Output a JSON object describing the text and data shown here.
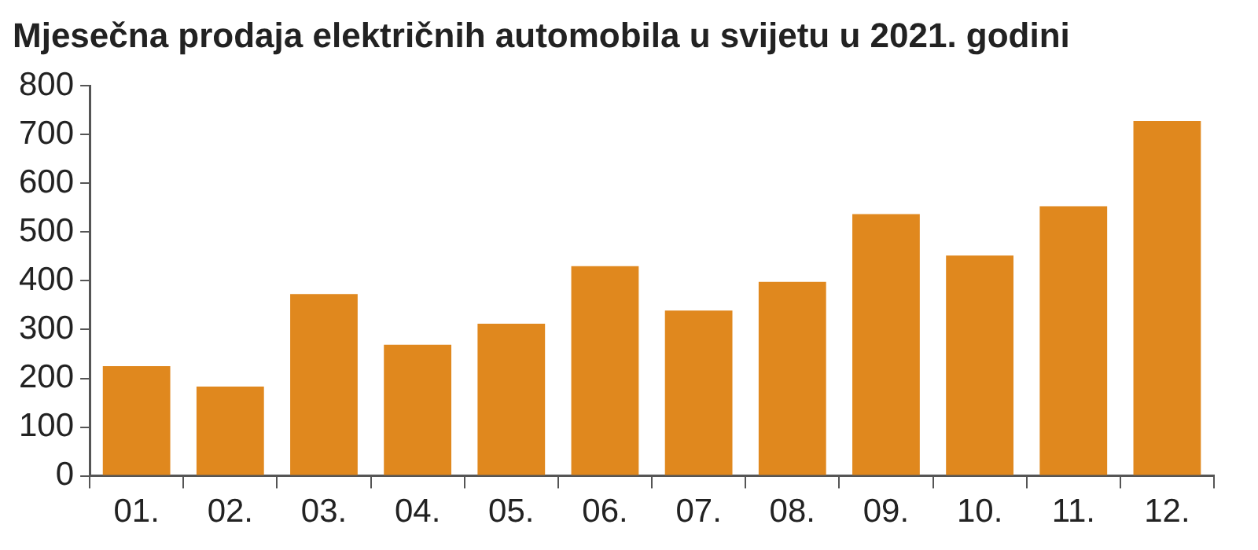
{
  "chart_data": {
    "type": "bar",
    "title": "Mjesečna prodaja električnih automobila u svijetu u 2021. godini",
    "categories": [
      "01.",
      "02.",
      "03.",
      "04.",
      "05.",
      "06.",
      "07.",
      "08.",
      "09.",
      "10.",
      "11.",
      "12."
    ],
    "values": [
      225,
      183,
      373,
      269,
      312,
      430,
      339,
      398,
      537,
      452,
      553,
      728
    ],
    "color": "#e0881e",
    "ylim": [
      0,
      800
    ],
    "yticks": [
      0,
      100,
      200,
      300,
      400,
      500,
      600,
      700,
      800
    ],
    "grid": false,
    "legend": false
  }
}
